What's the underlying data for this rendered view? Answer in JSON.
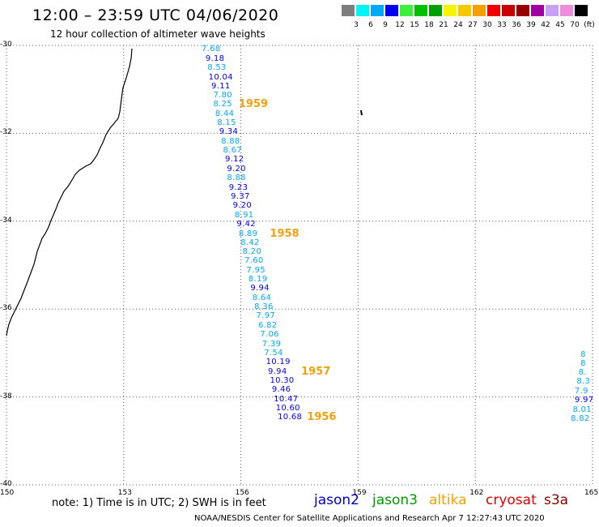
{
  "header": {
    "title": "12:00 – 23:59 UTC 04/06/2020",
    "subtitle": "12 hour collection of altimeter wave heights"
  },
  "colorbar": {
    "colors": [
      "#7d7d7d",
      "#00f5f5",
      "#00a8f5",
      "#0000f0",
      "#3cf03c",
      "#00c000",
      "#00a000",
      "#f5f500",
      "#f5c800",
      "#f5a000",
      "#f00000",
      "#c80000",
      "#960000",
      "#a000a0",
      "#c8a0f5",
      "#f08cdc",
      "#000000"
    ],
    "labels": [
      "3",
      "6",
      "9",
      "12",
      "15",
      "18",
      "21",
      "24",
      "27",
      "30",
      "33",
      "36",
      "39",
      "42",
      "45",
      "70",
      "(ft)"
    ]
  },
  "axes": {
    "y_ticks": [
      {
        "lat": -30,
        "label": "-30"
      },
      {
        "lat": -32,
        "label": "-32"
      },
      {
        "lat": -34,
        "label": "-34"
      },
      {
        "lat": -36,
        "label": "-36"
      },
      {
        "lat": -38,
        "label": "-38"
      },
      {
        "lat": -40,
        "label": "-40"
      }
    ],
    "x_ticks": [
      {
        "lon": 150,
        "label": "150"
      },
      {
        "lon": 153,
        "label": "153"
      },
      {
        "lon": 156,
        "label": "156"
      },
      {
        "lon": 159,
        "label": "159"
      },
      {
        "lon": 162,
        "label": "162"
      },
      {
        "lon": 165,
        "label": "165"
      }
    ],
    "lat_range": [
      -40,
      -30
    ],
    "lon_range": [
      150,
      165
    ],
    "grid": "dotted"
  },
  "chart_data": {
    "type": "scatter",
    "series": [
      {
        "name": "jason2",
        "color": "#0000cc"
      },
      {
        "name": "jason3",
        "color": "#009900"
      },
      {
        "name": "altika",
        "color": "#f5a000"
      },
      {
        "name": "cryosat",
        "color": "#dd0000"
      },
      {
        "name": "s3a",
        "color": "#880000"
      }
    ],
    "points": [
      {
        "text": "7.68",
        "lon": 155.2,
        "lat": -30.1,
        "color": "#00a8f5"
      },
      {
        "text": "9.18",
        "lon": 155.3,
        "lat": -30.31,
        "color": "#0000f0"
      },
      {
        "text": "8.53",
        "lon": 155.35,
        "lat": -30.52,
        "color": "#00a8f5"
      },
      {
        "text": "10.04",
        "lon": 155.38,
        "lat": -30.73,
        "color": "#0000f0"
      },
      {
        "text": "9.11",
        "lon": 155.45,
        "lat": -30.94,
        "color": "#0000f0"
      },
      {
        "text": "7.80",
        "lon": 155.5,
        "lat": -31.15,
        "color": "#00a8f5"
      },
      {
        "text": "8.25",
        "lon": 155.5,
        "lat": -31.35,
        "color": "#00a8f5"
      },
      {
        "text": "8.44",
        "lon": 155.55,
        "lat": -31.56,
        "color": "#00a8f5"
      },
      {
        "text": "8.15",
        "lon": 155.6,
        "lat": -31.77,
        "color": "#00a8f5"
      },
      {
        "text": "9.34",
        "lon": 155.65,
        "lat": -31.98,
        "color": "#0000f0"
      },
      {
        "text": "8.88",
        "lon": 155.7,
        "lat": -32.19,
        "color": "#00a8f5"
      },
      {
        "text": "8.67",
        "lon": 155.75,
        "lat": -32.4,
        "color": "#00a8f5"
      },
      {
        "text": "9.12",
        "lon": 155.8,
        "lat": -32.61,
        "color": "#0000f0"
      },
      {
        "text": "9.20",
        "lon": 155.85,
        "lat": -32.82,
        "color": "#0000f0"
      },
      {
        "text": "8.88",
        "lon": 155.85,
        "lat": -33.03,
        "color": "#00a8f5"
      },
      {
        "text": "9.23",
        "lon": 155.9,
        "lat": -33.24,
        "color": "#0000f0"
      },
      {
        "text": "9.37",
        "lon": 155.95,
        "lat": -33.45,
        "color": "#0000f0"
      },
      {
        "text": "9.20",
        "lon": 156.0,
        "lat": -33.66,
        "color": "#0000f0"
      },
      {
        "text": "8.91",
        "lon": 156.05,
        "lat": -33.87,
        "color": "#00a8f5"
      },
      {
        "text": "9.42",
        "lon": 156.1,
        "lat": -34.08,
        "color": "#0000f0"
      },
      {
        "text": "8.89",
        "lon": 156.15,
        "lat": -34.29,
        "color": "#00a8f5"
      },
      {
        "text": "8.42",
        "lon": 156.2,
        "lat": -34.5,
        "color": "#00a8f5"
      },
      {
        "text": "8.20",
        "lon": 156.25,
        "lat": -34.71,
        "color": "#00a8f5"
      },
      {
        "text": "7.60",
        "lon": 156.3,
        "lat": -34.91,
        "color": "#00a8f5"
      },
      {
        "text": "7.95",
        "lon": 156.35,
        "lat": -35.12,
        "color": "#00a8f5"
      },
      {
        "text": "8.19",
        "lon": 156.4,
        "lat": -35.33,
        "color": "#00a8f5"
      },
      {
        "text": "9.94",
        "lon": 156.45,
        "lat": -35.54,
        "color": "#0000f0"
      },
      {
        "text": "8.64",
        "lon": 156.5,
        "lat": -35.75,
        "color": "#00a8f5"
      },
      {
        "text": "8.36",
        "lon": 156.55,
        "lat": -35.96,
        "color": "#00a8f5"
      },
      {
        "text": "7.97",
        "lon": 156.6,
        "lat": -36.17,
        "color": "#00a8f5"
      },
      {
        "text": "6.82",
        "lon": 156.65,
        "lat": -36.38,
        "color": "#00a8f5"
      },
      {
        "text": "7.06",
        "lon": 156.7,
        "lat": -36.59,
        "color": "#00a8f5"
      },
      {
        "text": "7.39",
        "lon": 156.75,
        "lat": -36.8,
        "color": "#00a8f5"
      },
      {
        "text": "7.54",
        "lon": 156.8,
        "lat": -37.01,
        "color": "#00a8f5"
      },
      {
        "text": "10.19",
        "lon": 156.85,
        "lat": -37.22,
        "color": "#0000f0"
      },
      {
        "text": "9.94",
        "lon": 156.9,
        "lat": -37.43,
        "color": "#0000f0"
      },
      {
        "text": "10.30",
        "lon": 156.95,
        "lat": -37.64,
        "color": "#0000f0"
      },
      {
        "text": "9.46",
        "lon": 157.0,
        "lat": -37.85,
        "color": "#0000f0"
      },
      {
        "text": "10.47",
        "lon": 157.05,
        "lat": -38.06,
        "color": "#0000f0"
      },
      {
        "text": "10.60",
        "lon": 157.1,
        "lat": -38.27,
        "color": "#0000f0"
      },
      {
        "text": "10.68",
        "lon": 157.15,
        "lat": -38.47,
        "color": "#0000f0"
      },
      {
        "text": "8",
        "lon": 164.9,
        "lat": -37.05,
        "color": "#00a8f5"
      },
      {
        "text": "8",
        "lon": 164.9,
        "lat": -37.25,
        "color": "#00a8f5"
      },
      {
        "text": "8.",
        "lon": 164.85,
        "lat": -37.45,
        "color": "#00a8f5"
      },
      {
        "text": "8.3",
        "lon": 164.8,
        "lat": -37.66,
        "color": "#00a8f5"
      },
      {
        "text": "7.9",
        "lon": 164.75,
        "lat": -37.87,
        "color": "#00a8f5"
      },
      {
        "text": "9.97",
        "lon": 164.75,
        "lat": -38.09,
        "color": "#0000f0"
      },
      {
        "text": "8.01",
        "lon": 164.7,
        "lat": -38.3,
        "color": "#00a8f5"
      },
      {
        "text": "8.82",
        "lon": 164.65,
        "lat": -38.51,
        "color": "#00a8f5"
      }
    ],
    "pass_labels": [
      {
        "text": "1959",
        "lon": 156.15,
        "lat": -31.35
      },
      {
        "text": "1958",
        "lon": 156.95,
        "lat": -34.29
      },
      {
        "text": "1957",
        "lon": 157.75,
        "lat": -37.43
      },
      {
        "text": "1956",
        "lon": 157.9,
        "lat": -38.47
      }
    ]
  },
  "footer": {
    "note": "note:  1) Time is in UTC;  2) SWH is in feet",
    "legend": [
      {
        "name": "jason2",
        "color": "#0000cc"
      },
      {
        "name": "jason3",
        "color": "#009900"
      },
      {
        "name": "altika",
        "color": "#f5a000"
      },
      {
        "name": "cryosat",
        "color": "#dd0000"
      },
      {
        "name": "s3a",
        "color": "#880000"
      }
    ],
    "credit": "NOAA/NESDIS Center for Satellite Applications and Research    Apr  7 12:27:43 UTC 2020"
  }
}
